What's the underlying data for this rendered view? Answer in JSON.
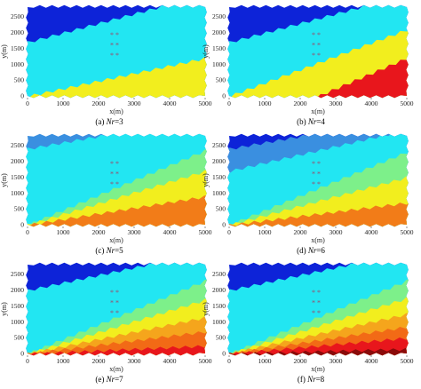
{
  "figure": {
    "panels": [
      {
        "id": "a",
        "caption_prefix": "(a)",
        "caption_var": "Nr",
        "caption_eq": "=3",
        "colors": [
          "#0d23d8",
          "#22e6f2",
          "#f2ee1e"
        ],
        "boundaries_m": [
          [
            0,
            1700,
            5000,
            3200
          ],
          [
            0,
            0,
            5000,
            1200
          ]
        ],
        "xlabel": "x(m)",
        "ylabel": "y(m)",
        "xticks": [
          "0",
          "1000",
          "2000",
          "3000",
          "4000",
          "5000"
        ],
        "yticks": [
          "0",
          "500",
          "1000",
          "1500",
          "2000",
          "2500"
        ],
        "stars": [
          "*",
          "*",
          "*"
        ]
      },
      {
        "id": "b",
        "caption_prefix": "(b)",
        "caption_var": "Nr",
        "caption_eq": "=4",
        "colors": [
          "#0d23d8",
          "#22e6f2",
          "#f2ee1e",
          "#e8161c"
        ],
        "boundaries_m": [
          [
            0,
            1700,
            5000,
            3200
          ],
          [
            0,
            0,
            5000,
            2100
          ],
          [
            0,
            -1200,
            5000,
            1200
          ]
        ],
        "xlabel": "x(m)",
        "ylabel": "y(m)",
        "xticks": [
          "0",
          "1000",
          "2000",
          "3000",
          "4000",
          "5000"
        ],
        "yticks": [
          "0",
          "500",
          "1000",
          "1500",
          "2000",
          "2500"
        ],
        "stars": [
          "*",
          "*",
          "*"
        ]
      },
      {
        "id": "c",
        "caption_prefix": "(c)",
        "caption_var": "Nr",
        "caption_eq": "=5",
        "colors": [
          "#3a8fe0",
          "#22e6f2",
          "#7df08a",
          "#f2ee1e",
          "#f27c18"
        ],
        "boundaries_m": [
          [
            0,
            2400,
            5000,
            3400
          ],
          [
            0,
            0,
            5000,
            2350
          ],
          [
            0,
            0,
            5000,
            1700
          ],
          [
            0,
            0,
            5000,
            900
          ]
        ],
        "xlabel": "x(m)",
        "ylabel": "y(m)",
        "xticks": [
          "0",
          "1000",
          "2000",
          "3000",
          "4000",
          "5000"
        ],
        "yticks": [
          "0",
          "500",
          "1000",
          "1500",
          "2000",
          "2500"
        ],
        "stars": [
          "*",
          "*",
          "*"
        ]
      },
      {
        "id": "d",
        "caption_prefix": "(d)",
        "caption_var": "Nr",
        "caption_eq": "=6",
        "colors": [
          "#0d23d8",
          "#3a8fe0",
          "#22e6f2",
          "#7df08a",
          "#f2ee1e",
          "#f27c18"
        ],
        "boundaries_m": [
          [
            0,
            2400,
            5000,
            3400
          ],
          [
            0,
            1700,
            5000,
            3000
          ],
          [
            0,
            0,
            5000,
            2300
          ],
          [
            0,
            0,
            5000,
            1500
          ],
          [
            0,
            0,
            5000,
            700
          ]
        ],
        "xlabel": "x(m)",
        "ylabel": "y(m)",
        "xticks": [
          "0",
          "1000",
          "2000",
          "3000",
          "4000",
          "5000"
        ],
        "yticks": [
          "0",
          "500",
          "1000",
          "1500",
          "2000",
          "2500"
        ],
        "stars": [
          "*",
          "*",
          "*"
        ]
      },
      {
        "id": "e",
        "caption_prefix": "(e)",
        "caption_var": "Nr",
        "caption_eq": "=7",
        "colors": [
          "#0d23d8",
          "#22e6f2",
          "#7df08a",
          "#f2ee1e",
          "#f5a51c",
          "#f26a16",
          "#e8161c"
        ],
        "boundaries_m": [
          [
            0,
            2000,
            5000,
            3200
          ],
          [
            0,
            0,
            5000,
            2300
          ],
          [
            0,
            0,
            5000,
            1700
          ],
          [
            0,
            0,
            5000,
            1150
          ],
          [
            0,
            0,
            5000,
            700
          ],
          [
            0,
            0,
            5000,
            250
          ]
        ],
        "xlabel": "x(m)",
        "ylabel": "y(m)",
        "xticks": [
          "0",
          "1000",
          "2000",
          "3000",
          "4000",
          "5000"
        ],
        "yticks": [
          "0",
          "500",
          "1000",
          "1500",
          "2000",
          "2500"
        ],
        "stars": [
          "*",
          "*",
          "*"
        ]
      },
      {
        "id": "f",
        "caption_prefix": "(f)",
        "caption_var": "Nr",
        "caption_eq": "=8",
        "colors": [
          "#0d23d8",
          "#22e6f2",
          "#7df08a",
          "#f2ee1e",
          "#f5a51c",
          "#f26a16",
          "#e8161c",
          "#8a0a0a"
        ],
        "boundaries_m": [
          [
            0,
            2000,
            5000,
            3200
          ],
          [
            0,
            0,
            5000,
            2300
          ],
          [
            0,
            0,
            5000,
            1750
          ],
          [
            0,
            0,
            5000,
            1250
          ],
          [
            0,
            0,
            5000,
            850
          ],
          [
            0,
            0,
            5000,
            500
          ],
          [
            0,
            0,
            5000,
            150
          ]
        ],
        "xlabel": "x(m)",
        "ylabel": "y(m)",
        "xticks": [
          "0",
          "1000",
          "2000",
          "3000",
          "4000",
          "5000"
        ],
        "yticks": [
          "0",
          "500",
          "1000",
          "1500",
          "2000",
          "2500"
        ],
        "stars": [
          "*",
          "*",
          "*"
        ]
      }
    ]
  }
}
